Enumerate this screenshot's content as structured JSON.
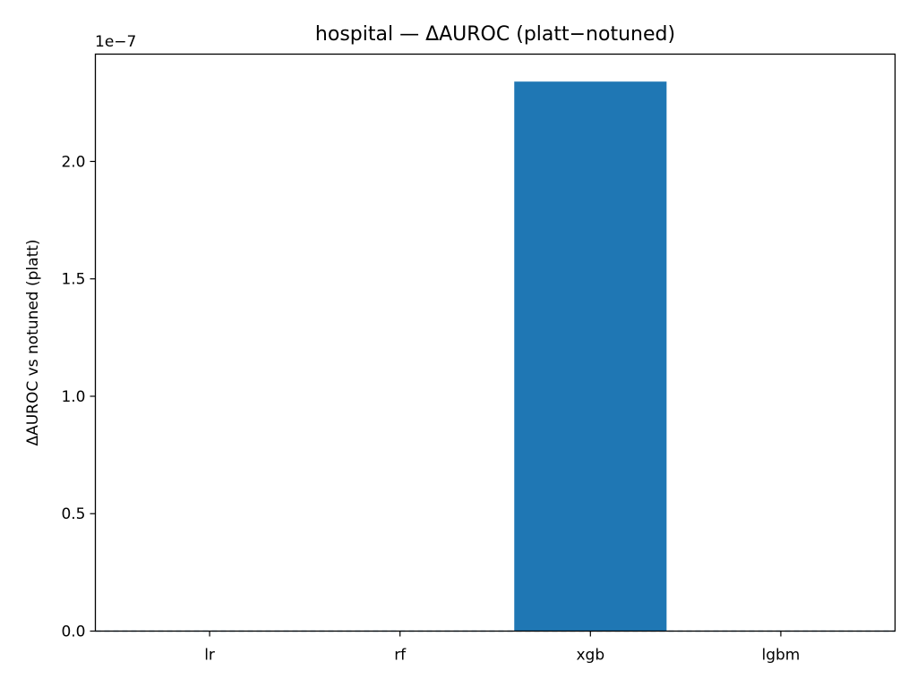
{
  "chart_data": {
    "type": "bar",
    "title": "hospital — ΔAUROC (platt−notuned)",
    "xlabel": "",
    "ylabel": "ΔAUROC vs notuned (platt)",
    "categories": [
      "lr",
      "rf",
      "xgb",
      "lgbm"
    ],
    "values": [
      0,
      0,
      2.34e-07,
      0
    ],
    "ylim": [
      0,
      2.457e-07
    ],
    "y_ticks": [
      0,
      5e-08,
      1e-07,
      1.5e-07,
      2e-07
    ],
    "y_tick_labels": [
      "0.0",
      "0.5",
      "1.0",
      "1.5",
      "2.0"
    ],
    "y_offset_label": "1e−7",
    "bar_color": "#1f77b4",
    "zero_line": "dashed",
    "grid": false,
    "legend": false
  }
}
